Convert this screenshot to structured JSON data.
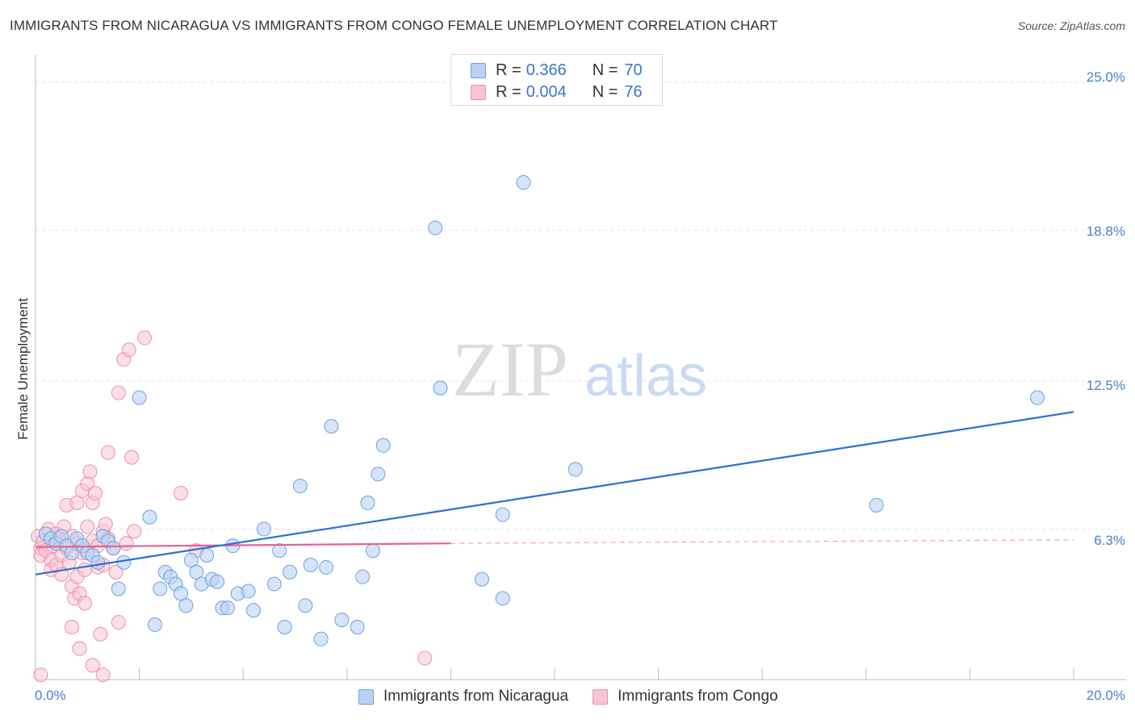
{
  "title": "IMMIGRANTS FROM NICARAGUA VS IMMIGRANTS FROM CONGO FEMALE UNEMPLOYMENT CORRELATION CHART",
  "source": "Source: ZipAtlas.com",
  "watermark": {
    "zip": "ZIP",
    "atlas": "atlas"
  },
  "legend_top": {
    "rows": [
      {
        "r_label": "R =",
        "r_value": "0.366",
        "n_label": "N =",
        "n_value": "70"
      },
      {
        "r_label": "R =",
        "r_value": "0.004",
        "n_label": "N =",
        "n_value": "76"
      }
    ]
  },
  "colors": {
    "nicaragua_fill": "#b9d2f3",
    "nicaragua_stroke": "#6fa0e2",
    "nicaragua_line": "#2b6fd4",
    "congo_fill": "#f8c4d4",
    "congo_stroke": "#ec8fac",
    "congo_line": "#e8628c",
    "tick_label": "#4a7fd0",
    "grid": "#e3e3e3"
  },
  "chart_data": {
    "type": "scatter",
    "title": "IMMIGRANTS FROM NICARAGUA VS IMMIGRANTS FROM CONGO FEMALE UNEMPLOYMENT CORRELATION CHART",
    "xlabel": "",
    "ylabel": "Female Unemployment",
    "xlim": [
      0,
      20
    ],
    "ylim": [
      0,
      25.8
    ],
    "x_tick_labels": [
      "0.0%",
      "20.0%"
    ],
    "y_ticks": [
      6.3,
      12.5,
      18.8,
      25.0
    ],
    "y_tick_labels": [
      "6.3%",
      "12.5%",
      "18.8%",
      "25.0%"
    ],
    "grid": true,
    "legend_position": "bottom",
    "series": [
      {
        "name": "Immigrants from Nicaragua",
        "R": 0.366,
        "N": 70,
        "trend": {
          "x": [
            0,
            20
          ],
          "y": [
            4.4,
            11.2
          ]
        },
        "points": [
          [
            0.2,
            6.1
          ],
          [
            0.3,
            5.9
          ],
          [
            0.4,
            5.7
          ],
          [
            0.5,
            6.0
          ],
          [
            0.6,
            5.6
          ],
          [
            0.7,
            5.3
          ],
          [
            0.8,
            5.9
          ],
          [
            0.9,
            5.6
          ],
          [
            1.0,
            5.3
          ],
          [
            1.1,
            5.2
          ],
          [
            1.2,
            4.9
          ],
          [
            1.3,
            6.0
          ],
          [
            1.4,
            5.8
          ],
          [
            1.5,
            5.5
          ],
          [
            1.6,
            3.8
          ],
          [
            1.7,
            4.9
          ],
          [
            2.0,
            11.8
          ],
          [
            2.2,
            6.8
          ],
          [
            2.3,
            2.3
          ],
          [
            2.4,
            3.8
          ],
          [
            2.5,
            4.5
          ],
          [
            2.6,
            4.3
          ],
          [
            2.7,
            4.0
          ],
          [
            2.8,
            3.6
          ],
          [
            2.9,
            3.1
          ],
          [
            3.0,
            5.0
          ],
          [
            3.1,
            4.5
          ],
          [
            3.2,
            4.0
          ],
          [
            3.3,
            5.2
          ],
          [
            3.4,
            4.2
          ],
          [
            3.5,
            4.1
          ],
          [
            3.6,
            3.0
          ],
          [
            3.7,
            3.0
          ],
          [
            3.8,
            5.6
          ],
          [
            3.9,
            3.6
          ],
          [
            4.1,
            3.7
          ],
          [
            4.2,
            2.9
          ],
          [
            4.4,
            6.3
          ],
          [
            4.6,
            4.0
          ],
          [
            4.7,
            5.4
          ],
          [
            4.8,
            2.2
          ],
          [
            4.9,
            4.5
          ],
          [
            5.1,
            8.1
          ],
          [
            5.2,
            3.1
          ],
          [
            5.3,
            4.8
          ],
          [
            5.5,
            1.7
          ],
          [
            5.6,
            4.7
          ],
          [
            5.7,
            10.6
          ],
          [
            5.9,
            2.5
          ],
          [
            6.2,
            2.2
          ],
          [
            6.3,
            4.3
          ],
          [
            6.4,
            7.4
          ],
          [
            6.5,
            5.4
          ],
          [
            6.6,
            8.6
          ],
          [
            6.7,
            9.8
          ],
          [
            7.7,
            18.9
          ],
          [
            7.8,
            12.2
          ],
          [
            8.6,
            4.2
          ],
          [
            9.0,
            3.4
          ],
          [
            9.0,
            6.9
          ],
          [
            9.4,
            20.8
          ],
          [
            10.4,
            8.8
          ],
          [
            16.2,
            7.3
          ],
          [
            19.3,
            11.8
          ]
        ]
      },
      {
        "name": "Immigrants from Congo",
        "R": 0.004,
        "N": 76,
        "trend": {
          "x": [
            0,
            8
          ],
          "y": [
            5.55,
            5.7
          ]
        },
        "trend_dashed": {
          "x": [
            8,
            20
          ],
          "y": [
            5.7,
            5.85
          ]
        },
        "points": [
          [
            0.05,
            6.0
          ],
          [
            0.1,
            5.5
          ],
          [
            0.1,
            5.2
          ],
          [
            0.15,
            5.8
          ],
          [
            0.2,
            5.4
          ],
          [
            0.25,
            6.3
          ],
          [
            0.3,
            5.0
          ],
          [
            0.3,
            4.6
          ],
          [
            0.35,
            5.6
          ],
          [
            0.4,
            6.1
          ],
          [
            0.4,
            4.8
          ],
          [
            0.45,
            5.9
          ],
          [
            0.5,
            5.2
          ],
          [
            0.5,
            4.4
          ],
          [
            0.55,
            6.4
          ],
          [
            0.6,
            7.3
          ],
          [
            0.6,
            5.5
          ],
          [
            0.65,
            4.9
          ],
          [
            0.7,
            6.0
          ],
          [
            0.7,
            3.9
          ],
          [
            0.7,
            2.2
          ],
          [
            0.75,
            3.4
          ],
          [
            0.8,
            7.4
          ],
          [
            0.8,
            5.7
          ],
          [
            0.8,
            4.3
          ],
          [
            0.85,
            3.6
          ],
          [
            0.85,
            1.3
          ],
          [
            0.9,
            7.9
          ],
          [
            0.9,
            5.3
          ],
          [
            0.95,
            4.6
          ],
          [
            0.95,
            3.2
          ],
          [
            1.0,
            8.2
          ],
          [
            1.0,
            6.4
          ],
          [
            1.0,
            5.4
          ],
          [
            1.05,
            8.7
          ],
          [
            1.1,
            7.4
          ],
          [
            1.1,
            5.8
          ],
          [
            1.1,
            0.6
          ],
          [
            1.15,
            7.8
          ],
          [
            1.2,
            5.6
          ],
          [
            1.2,
            4.7
          ],
          [
            1.25,
            1.9
          ],
          [
            1.3,
            6.2
          ],
          [
            1.3,
            4.8
          ],
          [
            1.35,
            6.5
          ],
          [
            1.4,
            9.5
          ],
          [
            1.4,
            5.9
          ],
          [
            1.5,
            5.5
          ],
          [
            1.55,
            4.5
          ],
          [
            1.6,
            2.4
          ],
          [
            1.6,
            12.0
          ],
          [
            1.7,
            13.4
          ],
          [
            1.75,
            5.7
          ],
          [
            1.8,
            13.8
          ],
          [
            1.85,
            9.3
          ],
          [
            1.9,
            6.2
          ],
          [
            2.1,
            14.3
          ],
          [
            2.8,
            7.8
          ],
          [
            3.1,
            5.4
          ],
          [
            7.5,
            0.9
          ],
          [
            0.1,
            0.2
          ],
          [
            1.3,
            0.2
          ]
        ]
      }
    ]
  },
  "legend_bottom": {
    "items": [
      "Immigrants from Nicaragua",
      "Immigrants from Congo"
    ]
  }
}
